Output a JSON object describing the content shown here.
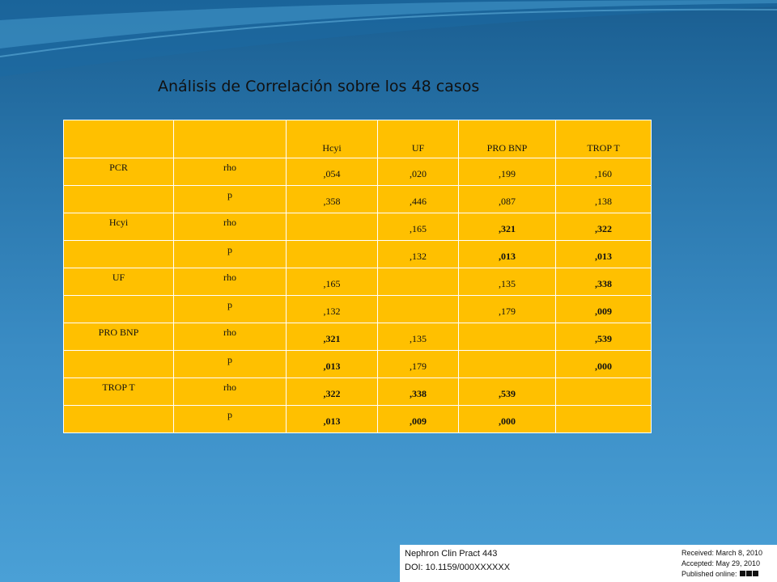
{
  "title": "Análisis de Correlación sobre los 48 casos",
  "table": {
    "columns": [
      "",
      "",
      "Hcyi",
      "UF",
      "PRO BNP",
      "TROP T"
    ],
    "rows": [
      {
        "label": "PCR",
        "stat": "rho",
        "cells": [
          ",054",
          ",020",
          ",199",
          ",160"
        ],
        "styles": [
          "y",
          "y",
          "y",
          "y"
        ]
      },
      {
        "label": "",
        "stat": "p",
        "cells": [
          ",358",
          ",446",
          ",087",
          ",138"
        ],
        "styles": [
          "y",
          "y",
          "y",
          "y"
        ]
      },
      {
        "label": "Hcyi",
        "stat": "rho",
        "cells": [
          "",
          ",165",
          ",321",
          ",322"
        ],
        "styles": [
          "y",
          "y",
          "b",
          "b"
        ]
      },
      {
        "label": "",
        "stat": "p",
        "cells": [
          "",
          ",132",
          ",013",
          ",013"
        ],
        "styles": [
          "y",
          "y",
          "b",
          "b"
        ]
      },
      {
        "label": "UF",
        "stat": "rho",
        "cells": [
          ",165",
          "",
          ",135",
          ",338"
        ],
        "styles": [
          "y",
          "y",
          "y",
          "yb"
        ]
      },
      {
        "label": "",
        "stat": "p",
        "cells": [
          ",132",
          "",
          ",179",
          ",009"
        ],
        "styles": [
          "y",
          "y",
          "y",
          "yb"
        ]
      },
      {
        "label": "PRO BNP",
        "stat": "rho",
        "cells": [
          ",321",
          ",135",
          "",
          ",539"
        ],
        "styles": [
          "b",
          "y",
          "y",
          "r"
        ]
      },
      {
        "label": "",
        "stat": "p",
        "cells": [
          ",013",
          ",179",
          "",
          ",000"
        ],
        "styles": [
          "b",
          "y",
          "y",
          "r"
        ]
      },
      {
        "label": "TROP T",
        "stat": "rho",
        "cells": [
          ",322",
          ",338",
          ",539",
          ""
        ],
        "styles": [
          "b",
          "b",
          "r",
          "y"
        ]
      },
      {
        "label": "",
        "stat": "p",
        "cells": [
          ",013",
          ",009",
          ",000",
          ""
        ],
        "styles": [
          "b",
          "b",
          "r",
          "y"
        ]
      }
    ],
    "colors": {
      "yellow": "#ffc000",
      "blue": "#0070c0",
      "red": "#c00000"
    }
  },
  "footer": {
    "journal": "Nephron Clin Pract 443",
    "doi": "DOI: 10.1159/000XXXXXX",
    "received": "Received: March 8, 2010",
    "accepted": "Accepted: May 29, 2010",
    "published": "Published online:"
  }
}
